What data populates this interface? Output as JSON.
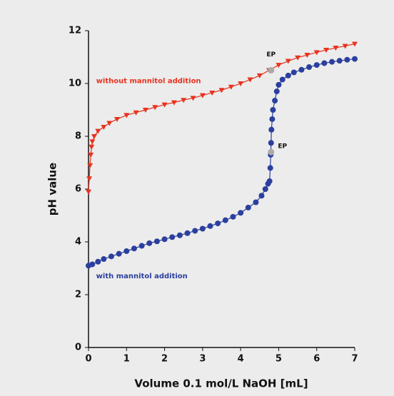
{
  "chart_data": {
    "type": "line",
    "x_label": "Volume 0.1 mol/L NaOH [mL]",
    "y_label": "pH value",
    "xlim": [
      0,
      7
    ],
    "xticks": [
      0,
      1,
      2,
      3,
      4,
      5,
      6,
      7
    ],
    "ylim": [
      0,
      12
    ],
    "yticks": [
      0,
      2,
      4,
      6,
      8,
      10,
      12
    ],
    "series": [
      {
        "name": "without mannitol addition",
        "color": "#e8321e",
        "marker": "triangle-down",
        "x": [
          0,
          0.02,
          0.04,
          0.06,
          0.08,
          0.1,
          0.15,
          0.25,
          0.4,
          0.55,
          0.75,
          1.0,
          1.25,
          1.5,
          1.75,
          2.0,
          2.25,
          2.5,
          2.75,
          3.0,
          3.25,
          3.5,
          3.75,
          4.0,
          4.25,
          4.5,
          4.75,
          5.0,
          5.25,
          5.5,
          5.75,
          6.0,
          6.25,
          6.5,
          6.75,
          7.0
        ],
        "values": [
          5.9,
          6.4,
          6.9,
          7.3,
          7.6,
          7.8,
          8.0,
          8.2,
          8.35,
          8.5,
          8.65,
          8.8,
          8.9,
          9.0,
          9.1,
          9.2,
          9.28,
          9.37,
          9.45,
          9.55,
          9.65,
          9.75,
          9.87,
          10.0,
          10.15,
          10.3,
          10.5,
          10.7,
          10.85,
          10.98,
          11.08,
          11.18,
          11.27,
          11.35,
          11.42,
          11.5
        ]
      },
      {
        "name": "with mannitol addition",
        "color": "#2b3f9e",
        "marker": "circle",
        "x": [
          0,
          0.1,
          0.25,
          0.4,
          0.6,
          0.8,
          1.0,
          1.2,
          1.4,
          1.6,
          1.8,
          2.0,
          2.2,
          2.4,
          2.6,
          2.8,
          3.0,
          3.2,
          3.4,
          3.6,
          3.8,
          4.0,
          4.2,
          4.4,
          4.55,
          4.65,
          4.72,
          4.76,
          4.78,
          4.79,
          4.8,
          4.81,
          4.83,
          4.85,
          4.9,
          4.95,
          5.0,
          5.1,
          5.25,
          5.4,
          5.6,
          5.8,
          6.0,
          6.2,
          6.4,
          6.6,
          6.8,
          7.0
        ],
        "values": [
          3.1,
          3.15,
          3.25,
          3.35,
          3.45,
          3.55,
          3.65,
          3.75,
          3.85,
          3.95,
          4.02,
          4.1,
          4.18,
          4.25,
          4.33,
          4.42,
          4.5,
          4.6,
          4.7,
          4.82,
          4.95,
          5.1,
          5.3,
          5.5,
          5.75,
          6.0,
          6.2,
          6.3,
          6.8,
          7.3,
          7.75,
          8.25,
          8.65,
          9.0,
          9.35,
          9.7,
          9.95,
          10.15,
          10.3,
          10.42,
          10.52,
          10.62,
          10.7,
          10.77,
          10.82,
          10.86,
          10.9,
          10.93
        ]
      }
    ],
    "points": [
      {
        "label": "EP",
        "x": 4.8,
        "y": 10.5,
        "color": "#aaaaaa"
      },
      {
        "label": "EP",
        "x": 4.8,
        "y": 7.4,
        "color": "#aaaaaa"
      }
    ]
  }
}
